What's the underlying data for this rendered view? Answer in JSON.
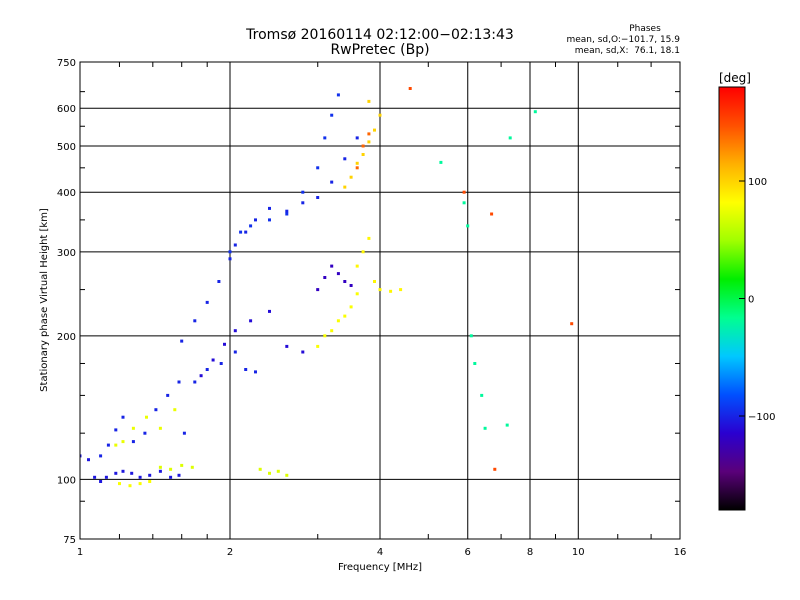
{
  "chart_data": {
    "type": "scatter",
    "title": "Tromsø 20160114 02:12:00−02:13:43",
    "subtitle": "RwPretec (Bp)",
    "xlabel": "Frequency [MHz]",
    "ylabel": "Stationary phase Virtual Height [km]",
    "x_scale": "log",
    "y_scale": "log",
    "xlim": [
      1,
      16
    ],
    "ylim": [
      75,
      750
    ],
    "x_ticks": [
      1,
      2,
      4,
      6,
      8,
      10,
      16
    ],
    "x_minor_ticks": [
      1.2,
      1.4,
      1.6,
      1.8,
      3,
      5,
      7,
      9,
      12,
      14
    ],
    "y_ticks": [
      75,
      100,
      200,
      300,
      400,
      500,
      600,
      750
    ],
    "y_minor_ticks": [
      90,
      125,
      150,
      175,
      250,
      350,
      450,
      550,
      650
    ],
    "grid": true,
    "phase_info": {
      "heading": "Phases",
      "line1": "mean, sd,O:−101.7, 15.9",
      "line2": "mean, sd,X:  76.1, 18.1"
    },
    "colorbar": {
      "label": "[deg]",
      "range": [
        -180,
        180
      ],
      "ticks": [
        {
          "value": 100,
          "label": "100"
        },
        {
          "value": 0,
          "label": "0"
        },
        {
          "value": -100,
          "label": "−100"
        }
      ],
      "colors": [
        "#000000",
        "#5a007a",
        "#2a00d0",
        "#0050ff",
        "#00c8ff",
        "#00ff90",
        "#00ee00",
        "#a0ff00",
        "#ffff00",
        "#ffb000",
        "#ff5000",
        "#ff0000"
      ]
    },
    "series": [
      {
        "points": [
          [
            1.0,
            112
          ],
          [
            1.04,
            110
          ],
          [
            1.07,
            101
          ],
          [
            1.1,
            99
          ],
          [
            1.13,
            101
          ],
          [
            1.18,
            103
          ],
          [
            1.22,
            104
          ],
          [
            1.27,
            103
          ],
          [
            1.32,
            101
          ],
          [
            1.38,
            102
          ],
          [
            1.45,
            104
          ],
          [
            1.52,
            101
          ],
          [
            1.58,
            102
          ]
        ],
        "phase": -105
      },
      {
        "points": [
          [
            1.2,
            98
          ],
          [
            1.26,
            97
          ],
          [
            1.32,
            98
          ],
          [
            1.38,
            99
          ]
        ],
        "phase": 80
      },
      {
        "points": [
          [
            1.45,
            106
          ],
          [
            1.52,
            105
          ],
          [
            1.6,
            107
          ],
          [
            1.68,
            106
          ]
        ],
        "phase": 70
      },
      {
        "points": [
          [
            1.1,
            112
          ],
          [
            1.14,
            118
          ],
          [
            1.18,
            127
          ],
          [
            1.22,
            135
          ],
          [
            1.28,
            120
          ],
          [
            1.35,
            125
          ],
          [
            1.42,
            140
          ],
          [
            1.5,
            150
          ],
          [
            1.58,
            160
          ],
          [
            1.62,
            125
          ],
          [
            1.7,
            160
          ],
          [
            1.8,
            170
          ],
          [
            1.92,
            175
          ],
          [
            2.05,
            185
          ],
          [
            2.15,
            170
          ],
          [
            2.25,
            168
          ]
        ],
        "phase": -100
      },
      {
        "points": [
          [
            1.18,
            118
          ],
          [
            1.22,
            120
          ],
          [
            1.28,
            128
          ],
          [
            1.36,
            135
          ],
          [
            1.45,
            128
          ],
          [
            1.55,
            140
          ]
        ],
        "phase": 75
      },
      {
        "points": [
          [
            1.6,
            195
          ],
          [
            1.7,
            215
          ],
          [
            1.8,
            235
          ],
          [
            1.9,
            260
          ],
          [
            2.0,
            290
          ],
          [
            2.05,
            310
          ],
          [
            2.15,
            330
          ],
          [
            2.25,
            350
          ],
          [
            2.4,
            370
          ],
          [
            2.6,
            365
          ],
          [
            2.8,
            380
          ],
          [
            3.0,
            390
          ],
          [
            3.2,
            420
          ],
          [
            3.4,
            470
          ],
          [
            3.6,
            520
          ]
        ],
        "phase": -100
      },
      {
        "points": [
          [
            1.75,
            165
          ],
          [
            1.85,
            178
          ],
          [
            1.95,
            192
          ],
          [
            2.05,
            205
          ],
          [
            2.2,
            215
          ],
          [
            2.4,
            225
          ],
          [
            2.6,
            190
          ],
          [
            2.8,
            185
          ]
        ],
        "phase": -110
      },
      {
        "points": [
          [
            2.0,
            300
          ],
          [
            2.1,
            330
          ],
          [
            2.2,
            340
          ],
          [
            2.4,
            350
          ],
          [
            2.6,
            360
          ],
          [
            2.8,
            400
          ],
          [
            3.0,
            450
          ],
          [
            3.1,
            520
          ],
          [
            3.2,
            580
          ],
          [
            3.3,
            640
          ]
        ],
        "phase": -95
      },
      {
        "points": [
          [
            3.0,
            250
          ],
          [
            3.1,
            265
          ],
          [
            3.2,
            280
          ],
          [
            3.3,
            270
          ],
          [
            3.4,
            260
          ],
          [
            3.5,
            255
          ]
        ],
        "phase": -120
      },
      {
        "points": [
          [
            3.0,
            190
          ],
          [
            3.1,
            200
          ],
          [
            3.2,
            205
          ],
          [
            3.3,
            215
          ],
          [
            3.4,
            220
          ],
          [
            3.5,
            230
          ],
          [
            3.6,
            245
          ]
        ],
        "phase": 80
      },
      {
        "points": [
          [
            3.6,
            280
          ],
          [
            3.7,
            300
          ],
          [
            3.8,
            320
          ],
          [
            3.9,
            260
          ],
          [
            4.0,
            250
          ],
          [
            4.2,
            248
          ],
          [
            4.4,
            250
          ]
        ],
        "phase": 85
      },
      {
        "points": [
          [
            3.4,
            410
          ],
          [
            3.5,
            430
          ],
          [
            3.6,
            460
          ],
          [
            3.7,
            480
          ],
          [
            3.8,
            510
          ],
          [
            3.9,
            540
          ],
          [
            4.0,
            580
          ],
          [
            3.8,
            620
          ]
        ],
        "phase": 100
      },
      {
        "points": [
          [
            3.6,
            450
          ],
          [
            3.7,
            500
          ],
          [
            3.8,
            530
          ]
        ],
        "phase": 140
      },
      {
        "points": [
          [
            2.3,
            105
          ],
          [
            2.4,
            103
          ],
          [
            2.5,
            104
          ],
          [
            2.6,
            102
          ]
        ],
        "phase": 70
      },
      {
        "points": [
          [
            5.3,
            462
          ],
          [
            5.9,
            380
          ],
          [
            6.0,
            340
          ],
          [
            6.4,
            150
          ],
          [
            6.5,
            128
          ],
          [
            7.2,
            130
          ],
          [
            7.3,
            520
          ],
          [
            8.2,
            590
          ],
          [
            6.1,
            200
          ],
          [
            6.2,
            175
          ]
        ],
        "phase": -20
      },
      {
        "points": [
          [
            4.6,
            660
          ],
          [
            6.7,
            360
          ],
          [
            6.8,
            105
          ],
          [
            9.7,
            212
          ],
          [
            5.9,
            400
          ]
        ],
        "phase": 150
      }
    ]
  }
}
